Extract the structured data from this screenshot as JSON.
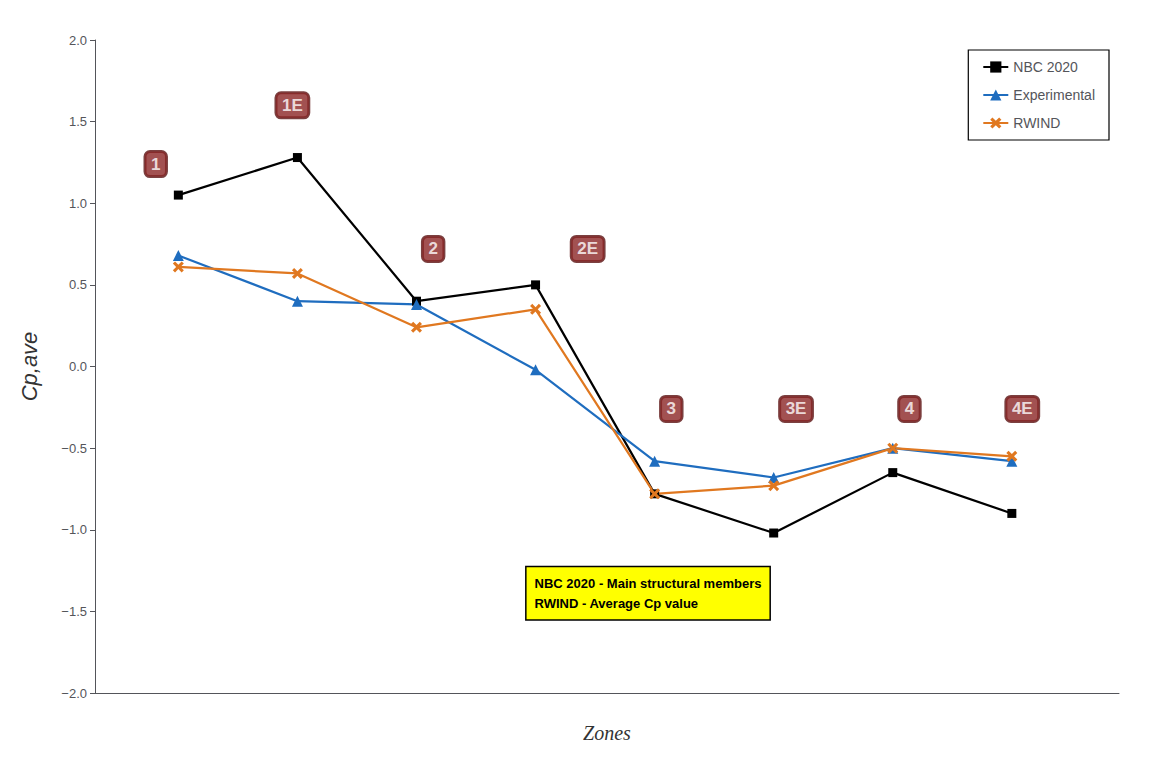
{
  "chart_data": {
    "type": "line",
    "x": [
      1,
      2,
      3,
      4,
      5,
      6,
      7,
      8
    ],
    "xlim": [
      0.3,
      8.9
    ],
    "xticks": [],
    "ylim": [
      -2.0,
      2.0
    ],
    "yticks": [
      {
        "value": -2.0,
        "label": "−2.0"
      },
      {
        "value": -1.5,
        "label": "−1.5"
      },
      {
        "value": -1.0,
        "label": "−1.0"
      },
      {
        "value": -0.5,
        "label": "−0.5"
      },
      {
        "value": 0.0,
        "label": "0.0"
      },
      0.5,
      {
        "value": 1.0,
        "label": "1.0"
      },
      1.5,
      {
        "value": 2.0,
        "label": "2.0"
      }
    ],
    "xlabel": "Zones",
    "ylabel": "Cp,ave",
    "tick_labels": "y",
    "grid": false,
    "legend": "upper right",
    "series": [
      {
        "name": "NBC 2020",
        "color": "#000000",
        "marker": "square",
        "values": [
          1.05,
          1.28,
          0.4,
          0.5,
          -0.78,
          -1.02,
          -0.65,
          -0.9
        ]
      },
      {
        "name": "Experimental",
        "color": "#1f6dbf",
        "marker": "triangle",
        "values": [
          0.68,
          0.4,
          0.38,
          -0.02,
          -0.58,
          -0.68,
          -0.5,
          -0.58
        ]
      },
      {
        "name": "RWIND",
        "color": "#e07820",
        "marker": "x",
        "values": [
          0.61,
          0.57,
          0.24,
          0.35,
          -0.78,
          -0.73,
          -0.5,
          -0.55
        ]
      }
    ],
    "annotations": [
      {
        "text": "1",
        "x": 0.72,
        "y": 1.24,
        "color": "#8B2525"
      },
      {
        "text": "1E",
        "x": 1.82,
        "y": 1.6,
        "color": "#8B2525"
      },
      {
        "text": "2",
        "x": 3.05,
        "y": 0.72,
        "color": "#8B2525"
      },
      {
        "text": "2E",
        "x": 4.3,
        "y": 0.72,
        "color": "#8B2525"
      },
      {
        "text": "3",
        "x": 5.05,
        "y": -0.26,
        "color": "#8B2525"
      },
      {
        "text": "3E",
        "x": 6.05,
        "y": -0.26,
        "color": "#8B2525"
      },
      {
        "text": "4",
        "x": 7.05,
        "y": -0.26,
        "color": "#8B2525"
      },
      {
        "text": "4E",
        "x": 7.95,
        "y": -0.26,
        "color": "#8B2525"
      }
    ],
    "note": "NBC 2020 - Main structural members\nRWIND - Average Cp value"
  }
}
